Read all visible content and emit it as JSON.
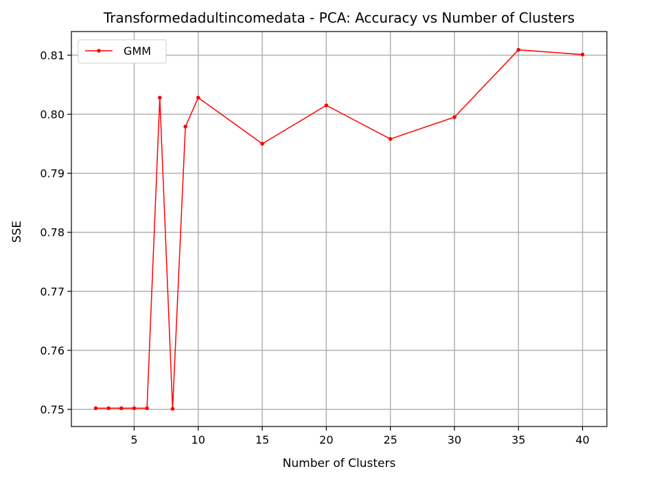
{
  "chart_data": {
    "type": "line",
    "title": "Transformedadultincomedata - PCA: Accuracy vs Number of Clusters",
    "xlabel": "Number of Clusters",
    "ylabel": "SSE",
    "xlim": [
      0.1,
      41.9
    ],
    "ylim": [
      0.7471,
      0.814
    ],
    "xticks": [
      5,
      10,
      15,
      20,
      25,
      30,
      35,
      40
    ],
    "yticks": [
      0.75,
      0.76,
      0.77,
      0.78,
      0.79,
      0.8,
      0.81
    ],
    "ytick_labels": [
      "0.75",
      "0.76",
      "0.77",
      "0.78",
      "0.79",
      "0.80",
      "0.81"
    ],
    "grid": true,
    "legend_position": "top-left",
    "series": [
      {
        "name": "GMM",
        "color": "#ff0000",
        "marker": "circle",
        "x": [
          2,
          3,
          4,
          5,
          6,
          7,
          8,
          9,
          10,
          15,
          20,
          25,
          30,
          35,
          40
        ],
        "y": [
          0.7502,
          0.7502,
          0.7502,
          0.7502,
          0.7502,
          0.8028,
          0.7501,
          0.7979,
          0.8028,
          0.795,
          0.8015,
          0.7958,
          0.7995,
          0.8109,
          0.8101
        ]
      }
    ]
  }
}
